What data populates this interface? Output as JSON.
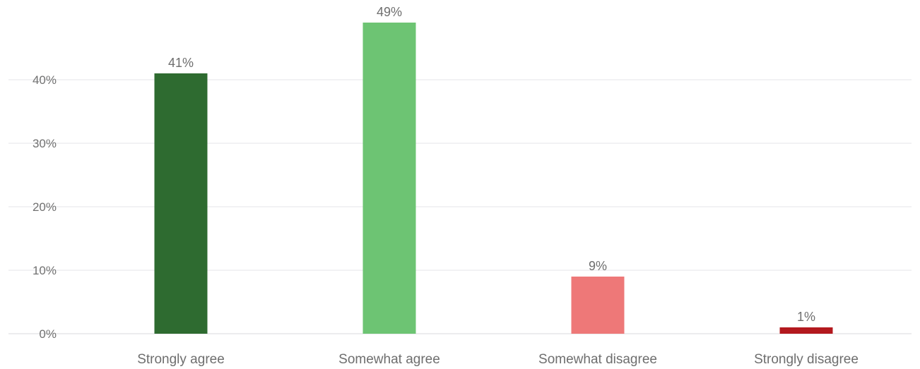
{
  "chart_data": {
    "type": "bar",
    "categories": [
      "Strongly agree",
      "Somewhat agree",
      "Somewhat disagree",
      "Strongly disagree"
    ],
    "values": [
      41,
      49,
      9,
      1
    ],
    "data_labels": [
      "41%",
      "49%",
      "9%",
      "1%"
    ],
    "colors": [
      "#2e6b30",
      "#6dc473",
      "#ee7878",
      "#b3191e"
    ],
    "ylim": [
      0,
      50
    ],
    "yticks": [
      0,
      10,
      20,
      30,
      40
    ],
    "ytick_labels": [
      "0%",
      "10%",
      "20%",
      "30%",
      "40%"
    ],
    "grid": true,
    "legend": "none"
  }
}
